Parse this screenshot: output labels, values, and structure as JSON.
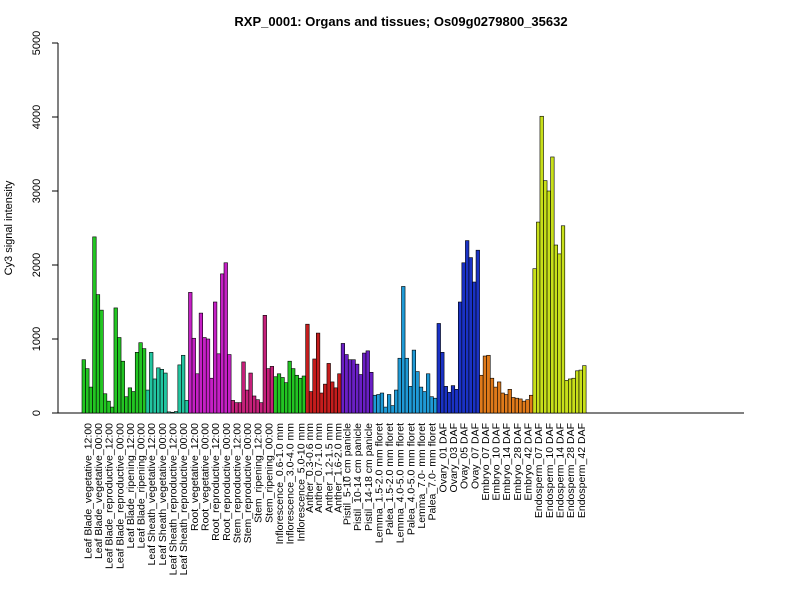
{
  "chart_data": {
    "type": "bar",
    "title": "RXP_0001: Organs and tissues; Os09g0279800_35632",
    "ylabel": "Cy3 signal intensity",
    "xlabel": "",
    "ylim": [
      0,
      5000
    ],
    "yticks": [
      0,
      1000,
      2000,
      3000,
      4000,
      5000
    ],
    "grid": false,
    "groups": [
      {
        "label": "Leaf Blade_vegetative_12:00",
        "color": "#22c522",
        "values": [
          720,
          600,
          350
        ]
      },
      {
        "label": "Leaf Blade_vegetative_00:00",
        "color": "#22c522",
        "values": [
          2380,
          1600,
          1390
        ]
      },
      {
        "label": "Leaf Blade_reproductive_12:00",
        "color": "#22c522",
        "values": [
          260,
          160,
          80
        ]
      },
      {
        "label": "Leaf Blade_reproductive_00:00",
        "color": "#22c522",
        "values": [
          1420,
          1020,
          700
        ]
      },
      {
        "label": "Leaf Blade_ripening_12:00",
        "color": "#22c522",
        "values": [
          220,
          340,
          290
        ]
      },
      {
        "label": "Leaf Blade_ripening_00:00",
        "color": "#22c522",
        "values": [
          820,
          950,
          870
        ]
      },
      {
        "label": "Leaf Sheath_vegetative_12:00",
        "color": "#22c5a0",
        "values": [
          310,
          820,
          460
        ]
      },
      {
        "label": "Leaf Sheath_vegetative_00:00",
        "color": "#22c5a0",
        "values": [
          610,
          590,
          540
        ]
      },
      {
        "label": "Leaf Sheath_reproductive_12:00",
        "color": "#22c5a0",
        "values": [
          15,
          10,
          20
        ]
      },
      {
        "label": "Leaf Sheath_reproductive_00:00",
        "color": "#22c5a0",
        "values": [
          650,
          780,
          170
        ]
      },
      {
        "label": "Root_vegetative_12:00",
        "color": "#c520c5",
        "values": [
          1630,
          1010,
          530
        ]
      },
      {
        "label": "Root_vegetative_00:00",
        "color": "#c520c5",
        "values": [
          1350,
          1020,
          1000
        ]
      },
      {
        "label": "Root_reproductive_12:00",
        "color": "#c520c5",
        "values": [
          470,
          1500,
          800
        ]
      },
      {
        "label": "Root_reproductive_00:00",
        "color": "#c520c5",
        "values": [
          1880,
          2030,
          790
        ]
      },
      {
        "label": "Stem_reproductive_12:00",
        "color": "#c5207a",
        "values": [
          170,
          140,
          140
        ]
      },
      {
        "label": "Stem_reproductive_00:00",
        "color": "#c5207a",
        "values": [
          690,
          310,
          540
        ]
      },
      {
        "label": "Stem_ripening_12:00",
        "color": "#c5207a",
        "values": [
          230,
          180,
          140
        ]
      },
      {
        "label": "Stem_ripening_00:00",
        "color": "#c5207a",
        "values": [
          1320,
          600,
          630
        ]
      },
      {
        "label": "Inflorescence_0.6-1.0 mm",
        "color": "#22c522",
        "values": [
          490,
          530,
          480
        ]
      },
      {
        "label": "Inflorescence_3.0-4.0 mm",
        "color": "#22c522",
        "values": [
          410,
          700,
          600
        ]
      },
      {
        "label": "Inflorescence_5.0-10 mm",
        "color": "#22c522",
        "values": [
          510,
          470,
          500
        ]
      },
      {
        "label": "Anther_0.3-0.6 mm",
        "color": "#c51d1d",
        "values": [
          1200,
          290
        ]
      },
      {
        "label": "Anther_0.7-1.0 mm",
        "color": "#c51d1d",
        "values": [
          730,
          1080,
          270
        ]
      },
      {
        "label": "Anther_1.2-1.5 mm",
        "color": "#c51d1d",
        "values": [
          390,
          670,
          420
        ]
      },
      {
        "label": "Anther_1.6-2.0 mm",
        "color": "#c51d1d",
        "values": [
          340,
          530
        ]
      },
      {
        "label": "Pistil_5-10 cm panicle",
        "color": "#6a1fc5",
        "values": [
          940,
          790,
          720
        ]
      },
      {
        "label": "Pistil_10-14 cm panicle",
        "color": "#6a1fc5",
        "values": [
          720,
          660,
          520
        ]
      },
      {
        "label": "Pistil_14-18 cm panicle",
        "color": "#6a1fc5",
        "values": [
          810,
          840,
          550
        ]
      },
      {
        "label": "Lemma_1.5-2.0 mm floret",
        "color": "#1f9ad6",
        "values": [
          240,
          250,
          270
        ]
      },
      {
        "label": "Palea_1.5-2.0 mm floret",
        "color": "#1f9ad6",
        "values": [
          80,
          250,
          100
        ]
      },
      {
        "label": "Lemma_4.0-5.0 mm floret",
        "color": "#1f9ad6",
        "values": [
          310,
          740,
          1710
        ]
      },
      {
        "label": "Palea_4.0-5.0 mm floret",
        "color": "#1f9ad6",
        "values": [
          740,
          360,
          850
        ]
      },
      {
        "label": "Lemma_7.0- mm floret",
        "color": "#1f9ad6",
        "values": [
          560,
          350,
          290
        ]
      },
      {
        "label": "Palea_7.0- mm floret",
        "color": "#1f9ad6",
        "values": [
          530,
          220,
          200
        ]
      },
      {
        "label": "Ovary_01 DAF",
        "color": "#1a32c5",
        "values": [
          1210,
          820,
          360
        ]
      },
      {
        "label": "Ovary_03 DAF",
        "color": "#1a32c5",
        "values": [
          280,
          370,
          320
        ]
      },
      {
        "label": "Ovay_05 DAF",
        "color": "#1a32c5",
        "values": [
          1500,
          2030,
          2330
        ]
      },
      {
        "label": "Ovay_07 DAF",
        "color": "#1a32c5",
        "values": [
          2100,
          1770,
          2200
        ]
      },
      {
        "label": "Embryo_07 DAF",
        "color": "#e07a1a",
        "values": [
          510,
          770,
          780
        ]
      },
      {
        "label": "Embryo_10 DAF",
        "color": "#e07a1a",
        "values": [
          470,
          350,
          420
        ]
      },
      {
        "label": "Embryo_14 DAF",
        "color": "#e07a1a",
        "values": [
          270,
          250,
          320
        ]
      },
      {
        "label": "Embryo_28 DAF",
        "color": "#e07a1a",
        "values": [
          210,
          200,
          190
        ]
      },
      {
        "label": "Embryo_42 DAF",
        "color": "#e07a1a",
        "values": [
          160,
          180,
          240
        ]
      },
      {
        "label": "Endosperm_07 DAF",
        "color": "#c8e01a",
        "values": [
          1950,
          2580,
          4010
        ]
      },
      {
        "label": "Endosperm_10 DAF",
        "color": "#c8e01a",
        "values": [
          3140,
          3000,
          3460
        ]
      },
      {
        "label": "Endosperm_14 DAF",
        "color": "#c8e01a",
        "values": [
          2270,
          2150,
          2530
        ]
      },
      {
        "label": "Endosperm_28 DAF",
        "color": "#c8e01a",
        "values": [
          440,
          460,
          470
        ]
      },
      {
        "label": "Endosperm_42 DAF",
        "color": "#c8e01a",
        "values": [
          570,
          580,
          640
        ]
      }
    ]
  }
}
